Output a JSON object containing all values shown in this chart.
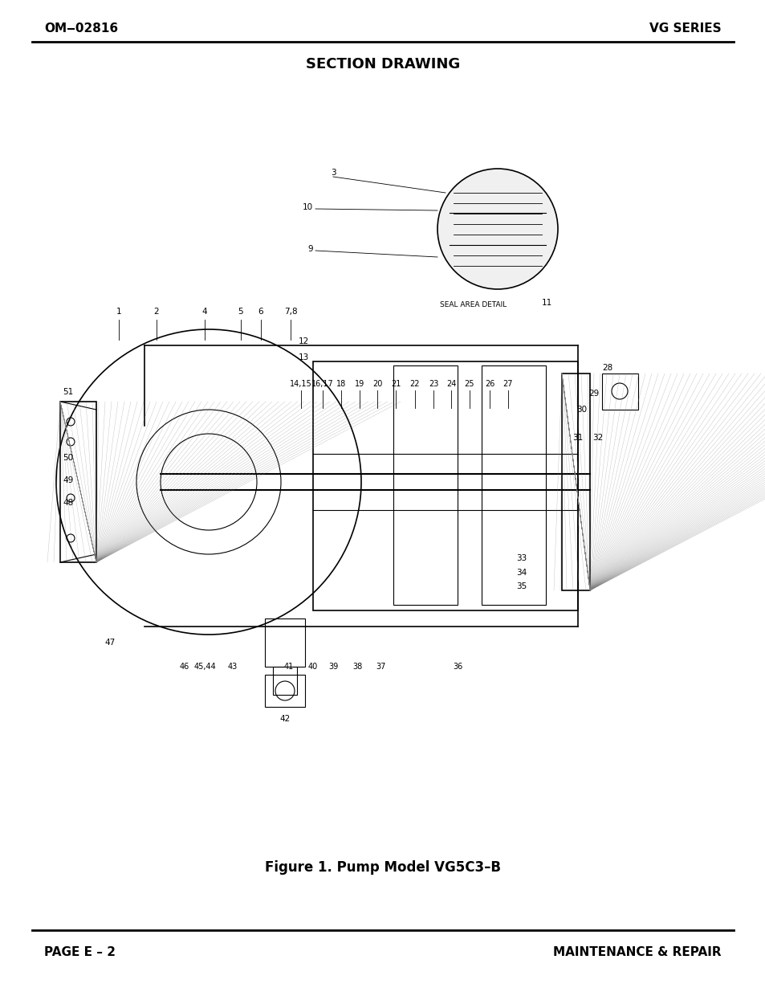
{
  "bg_color": "#ffffff",
  "header_left": "OM‒02816",
  "header_right": "VG SERIES",
  "section_title": "SECTION DRAWING",
  "footer_caption": "Figure 1. Pump Model VG5C3–B",
  "footer_left": "PAGE E – 2",
  "footer_right": "MAINTENANCE & REPAIR",
  "header_font_size": 11,
  "section_title_font_size": 13,
  "footer_caption_font_size": 12,
  "footer_font_size": 11,
  "page_width": 9.54,
  "page_height": 12.35,
  "dpi": 100,
  "drawing_labels": {
    "left_labels": [
      "1",
      "2",
      "4",
      "5",
      "6",
      "7,8",
      "9",
      "10",
      "3",
      "12",
      "13",
      "14,15",
      "16,17",
      "18",
      "19",
      "20",
      "21",
      "22",
      "23",
      "24",
      "25",
      "26",
      "27",
      "28",
      "29",
      "30",
      "31",
      "32",
      "51",
      "50",
      "49",
      "48",
      "47",
      "46",
      "45,44",
      "43",
      "41",
      "40",
      "39",
      "38",
      "37",
      "36",
      "33",
      "34",
      "35",
      "42",
      "11"
    ],
    "seal_area": "SEAL AREA DETAIL"
  }
}
